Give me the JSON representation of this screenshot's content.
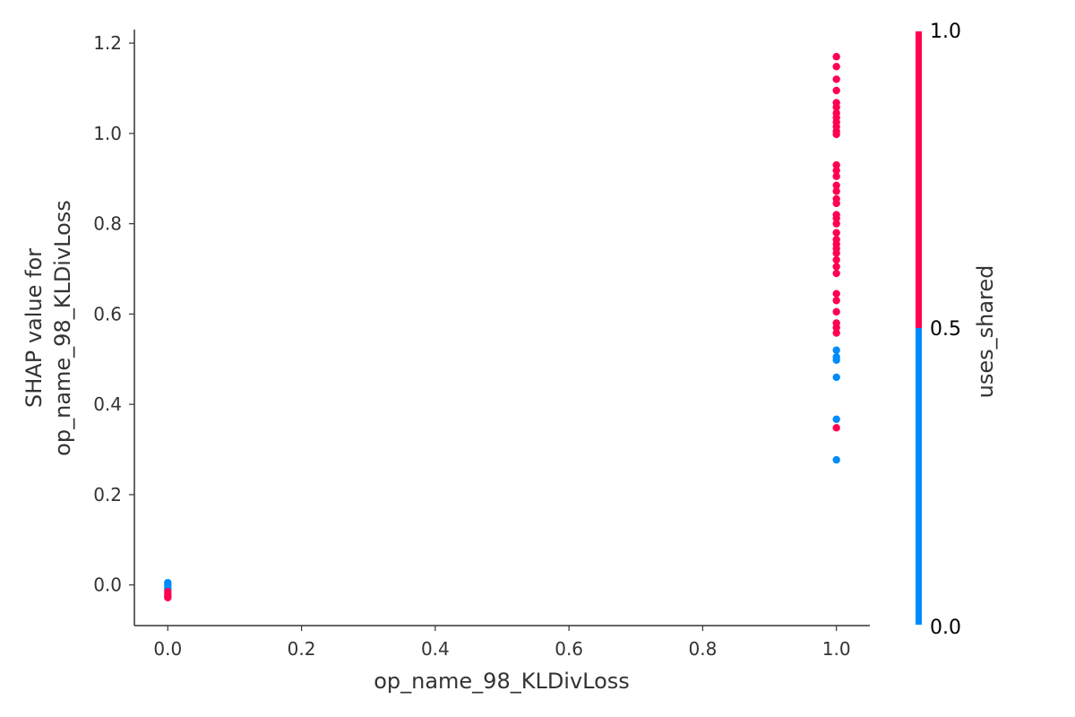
{
  "chart_data": {
    "type": "scatter",
    "title": "",
    "xlabel": "op_name_98_KLDivLoss",
    "ylabel_lines": [
      "SHAP value for",
      "op_name_98_KLDivLoss"
    ],
    "xlim": [
      -0.05,
      1.05
    ],
    "ylim": [
      -0.09,
      1.23
    ],
    "xticks": [
      "0.0",
      "0.2",
      "0.4",
      "0.6",
      "0.8",
      "1.0"
    ],
    "yticks": [
      "0.0",
      "0.2",
      "0.4",
      "0.6",
      "0.8",
      "1.0",
      "1.2"
    ],
    "colorbar": {
      "label": "uses_shared",
      "ticks": [
        "0.0",
        "0.5",
        "1.0"
      ],
      "low_color": "#008bfb",
      "high_color": "#ff0052"
    },
    "points": [
      {
        "x": 0.0,
        "y": 0.005,
        "c": 0
      },
      {
        "x": 0.0,
        "y": 0.0,
        "c": 0
      },
      {
        "x": 0.0,
        "y": -0.005,
        "c": 0
      },
      {
        "x": 0.0,
        "y": -0.01,
        "c": 0
      },
      {
        "x": 0.0,
        "y": -0.015,
        "c": 1
      },
      {
        "x": 0.0,
        "y": -0.02,
        "c": 1
      },
      {
        "x": 0.0,
        "y": -0.025,
        "c": 1
      },
      {
        "x": 0.0,
        "y": -0.028,
        "c": 1
      },
      {
        "x": 1.0,
        "y": 1.17,
        "c": 1
      },
      {
        "x": 1.0,
        "y": 1.148,
        "c": 1
      },
      {
        "x": 1.0,
        "y": 1.12,
        "c": 1
      },
      {
        "x": 1.0,
        "y": 1.095,
        "c": 1
      },
      {
        "x": 1.0,
        "y": 1.068,
        "c": 1
      },
      {
        "x": 1.0,
        "y": 1.058,
        "c": 1
      },
      {
        "x": 1.0,
        "y": 1.045,
        "c": 1
      },
      {
        "x": 1.0,
        "y": 1.035,
        "c": 1
      },
      {
        "x": 1.0,
        "y": 1.025,
        "c": 1
      },
      {
        "x": 1.0,
        "y": 1.015,
        "c": 1
      },
      {
        "x": 1.0,
        "y": 1.005,
        "c": 1
      },
      {
        "x": 1.0,
        "y": 0.998,
        "c": 1
      },
      {
        "x": 1.0,
        "y": 0.93,
        "c": 1
      },
      {
        "x": 1.0,
        "y": 0.918,
        "c": 1
      },
      {
        "x": 1.0,
        "y": 0.905,
        "c": 1
      },
      {
        "x": 1.0,
        "y": 0.885,
        "c": 1
      },
      {
        "x": 1.0,
        "y": 0.872,
        "c": 1
      },
      {
        "x": 1.0,
        "y": 0.855,
        "c": 1
      },
      {
        "x": 1.0,
        "y": 0.845,
        "c": 1
      },
      {
        "x": 1.0,
        "y": 0.82,
        "c": 1
      },
      {
        "x": 1.0,
        "y": 0.812,
        "c": 1
      },
      {
        "x": 1.0,
        "y": 0.8,
        "c": 1
      },
      {
        "x": 1.0,
        "y": 0.78,
        "c": 1
      },
      {
        "x": 1.0,
        "y": 0.765,
        "c": 1
      },
      {
        "x": 1.0,
        "y": 0.755,
        "c": 1
      },
      {
        "x": 1.0,
        "y": 0.745,
        "c": 1
      },
      {
        "x": 1.0,
        "y": 0.735,
        "c": 1
      },
      {
        "x": 1.0,
        "y": 0.72,
        "c": 1
      },
      {
        "x": 1.0,
        "y": 0.705,
        "c": 1
      },
      {
        "x": 1.0,
        "y": 0.69,
        "c": 1
      },
      {
        "x": 1.0,
        "y": 0.645,
        "c": 1
      },
      {
        "x": 1.0,
        "y": 0.63,
        "c": 1
      },
      {
        "x": 1.0,
        "y": 0.605,
        "c": 1
      },
      {
        "x": 1.0,
        "y": 0.58,
        "c": 1
      },
      {
        "x": 1.0,
        "y": 0.57,
        "c": 1
      },
      {
        "x": 1.0,
        "y": 0.558,
        "c": 1
      },
      {
        "x": 1.0,
        "y": 0.52,
        "c": 0
      },
      {
        "x": 1.0,
        "y": 0.505,
        "c": 0
      },
      {
        "x": 1.0,
        "y": 0.498,
        "c": 0
      },
      {
        "x": 1.0,
        "y": 0.46,
        "c": 0
      },
      {
        "x": 1.0,
        "y": 0.367,
        "c": 0
      },
      {
        "x": 1.0,
        "y": 0.348,
        "c": 1
      },
      {
        "x": 1.0,
        "y": 0.277,
        "c": 0
      }
    ]
  }
}
